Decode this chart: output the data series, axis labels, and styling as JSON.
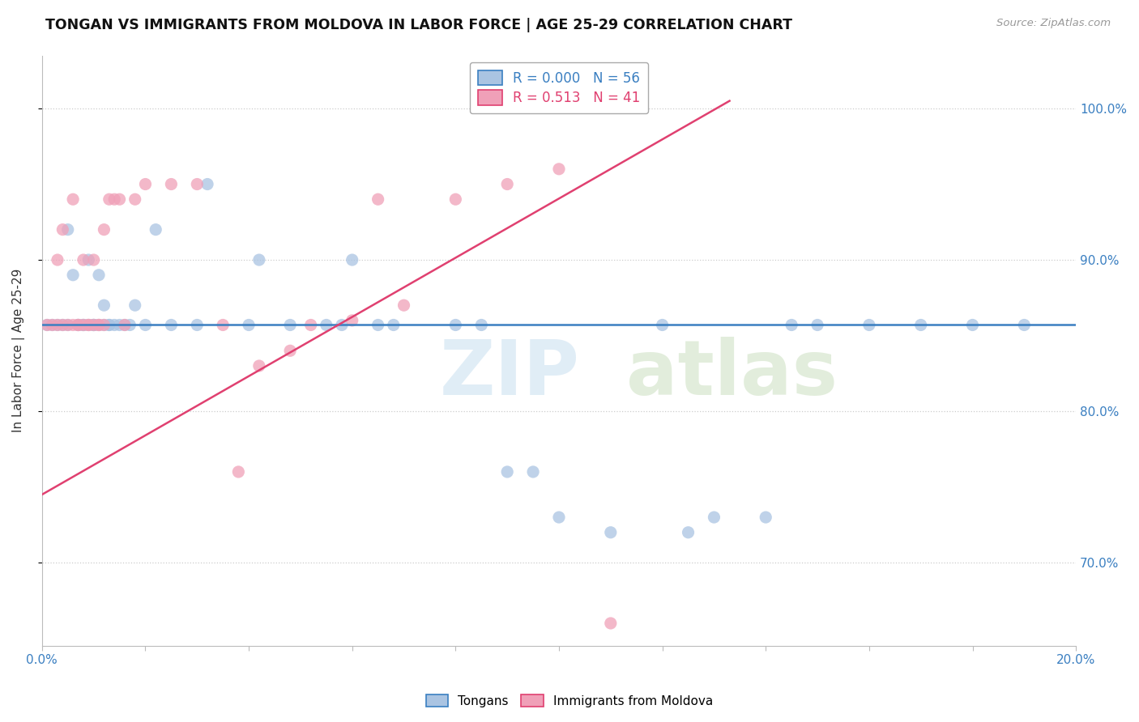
{
  "title": "TONGAN VS IMMIGRANTS FROM MOLDOVA IN LABOR FORCE | AGE 25-29 CORRELATION CHART",
  "source": "Source: ZipAtlas.com",
  "ylabel": "In Labor Force | Age 25-29",
  "xlim": [
    0.0,
    0.2
  ],
  "ylim": [
    0.645,
    1.035
  ],
  "ytick_positions": [
    0.7,
    0.8,
    0.9,
    1.0
  ],
  "ytick_labels": [
    "70.0%",
    "80.0%",
    "90.0%",
    "100.0%"
  ],
  "blue_R": 0.0,
  "blue_N": 56,
  "pink_R": 0.513,
  "pink_N": 41,
  "blue_color": "#aac4e2",
  "pink_color": "#f0a0b8",
  "blue_line_color": "#3a7fc1",
  "pink_line_color": "#e04070",
  "grid_color": "#cccccc",
  "background_color": "#ffffff",
  "blue_line_y": 0.857,
  "pink_line_x0": 0.0,
  "pink_line_y0": 0.745,
  "pink_line_x1": 0.133,
  "pink_line_y1": 1.005,
  "blue_dots_x": [
    0.001,
    0.002,
    0.003,
    0.004,
    0.005,
    0.005,
    0.006,
    0.007,
    0.007,
    0.008,
    0.008,
    0.009,
    0.009,
    0.01,
    0.01,
    0.01,
    0.011,
    0.011,
    0.012,
    0.012,
    0.013,
    0.013,
    0.014,
    0.015,
    0.016,
    0.017,
    0.018,
    0.02,
    0.022,
    0.025,
    0.03,
    0.032,
    0.04,
    0.042,
    0.048,
    0.055,
    0.058,
    0.06,
    0.065,
    0.068,
    0.08,
    0.085,
    0.09,
    0.095,
    0.1,
    0.11,
    0.12,
    0.125,
    0.13,
    0.14,
    0.145,
    0.15,
    0.16,
    0.17,
    0.18,
    0.19
  ],
  "blue_dots_y": [
    0.857,
    0.857,
    0.857,
    0.857,
    0.92,
    0.857,
    0.89,
    0.857,
    0.857,
    0.857,
    0.857,
    0.857,
    0.9,
    0.857,
    0.857,
    0.857,
    0.89,
    0.857,
    0.857,
    0.87,
    0.857,
    0.857,
    0.857,
    0.857,
    0.857,
    0.857,
    0.87,
    0.857,
    0.92,
    0.857,
    0.857,
    0.95,
    0.857,
    0.9,
    0.857,
    0.857,
    0.857,
    0.9,
    0.857,
    0.857,
    0.857,
    0.857,
    0.76,
    0.76,
    0.73,
    0.72,
    0.857,
    0.72,
    0.73,
    0.73,
    0.857,
    0.857,
    0.857,
    0.857,
    0.857,
    0.857
  ],
  "pink_dots_x": [
    0.001,
    0.002,
    0.003,
    0.003,
    0.004,
    0.004,
    0.005,
    0.006,
    0.006,
    0.007,
    0.007,
    0.008,
    0.008,
    0.009,
    0.009,
    0.01,
    0.01,
    0.011,
    0.011,
    0.012,
    0.012,
    0.013,
    0.014,
    0.015,
    0.016,
    0.018,
    0.02,
    0.025,
    0.03,
    0.035,
    0.038,
    0.042,
    0.048,
    0.052,
    0.06,
    0.065,
    0.07,
    0.08,
    0.09,
    0.1,
    0.11
  ],
  "pink_dots_y": [
    0.857,
    0.857,
    0.9,
    0.857,
    0.857,
    0.92,
    0.857,
    0.857,
    0.94,
    0.857,
    0.857,
    0.9,
    0.857,
    0.857,
    0.857,
    0.857,
    0.9,
    0.857,
    0.857,
    0.92,
    0.857,
    0.94,
    0.94,
    0.94,
    0.857,
    0.94,
    0.95,
    0.95,
    0.95,
    0.857,
    0.76,
    0.83,
    0.84,
    0.857,
    0.86,
    0.94,
    0.87,
    0.94,
    0.95,
    0.96,
    0.66
  ]
}
